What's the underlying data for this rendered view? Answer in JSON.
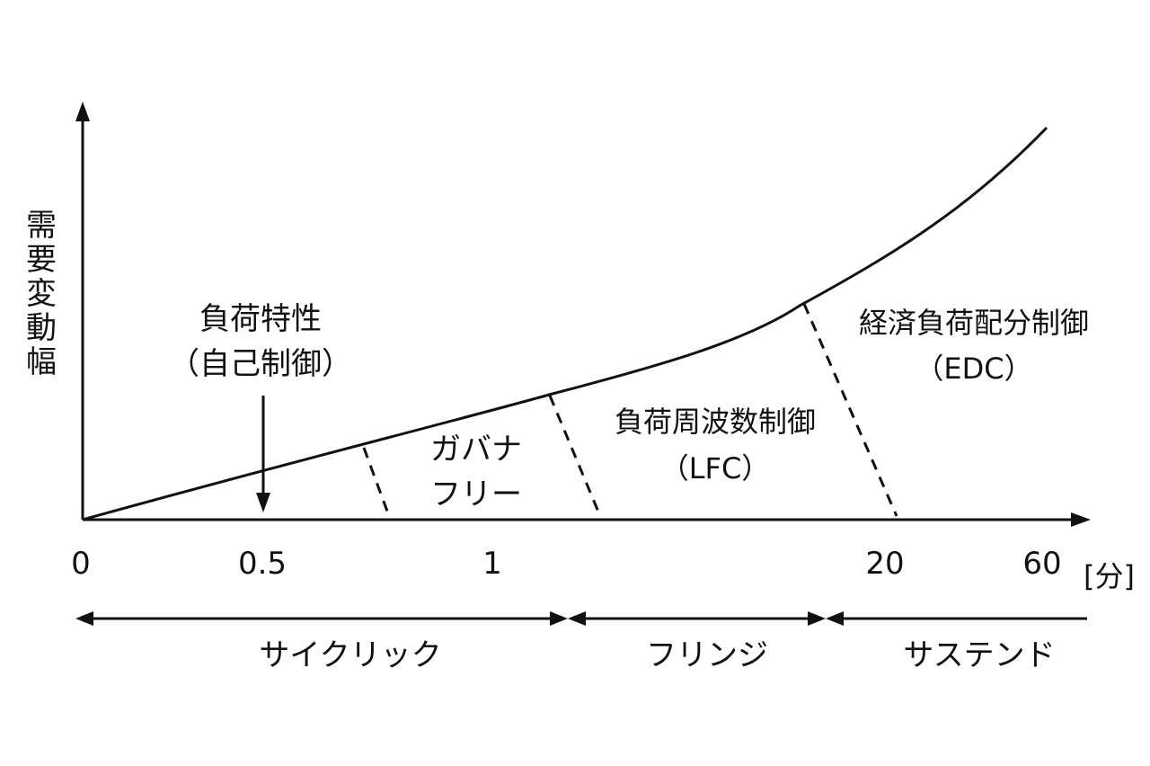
{
  "diagram": {
    "y_axis_label": "需要変動幅",
    "x_ticks": [
      "0",
      "0.5",
      "1",
      "20",
      "60"
    ],
    "x_unit": "[分]",
    "regions": [
      {
        "lines": [
          "負荷特性",
          "（自己制御）"
        ]
      },
      {
        "lines": [
          "ガバナ",
          "フリー"
        ]
      },
      {
        "lines": [
          "負荷周波数制御",
          "（LFC）"
        ]
      },
      {
        "lines": [
          "経済負荷配分制御",
          "（EDC）"
        ]
      }
    ],
    "ranges": [
      "サイクリック",
      "フリンジ",
      "サステンド"
    ],
    "colors": {
      "ink": "#111111",
      "background": "#ffffff"
    }
  }
}
